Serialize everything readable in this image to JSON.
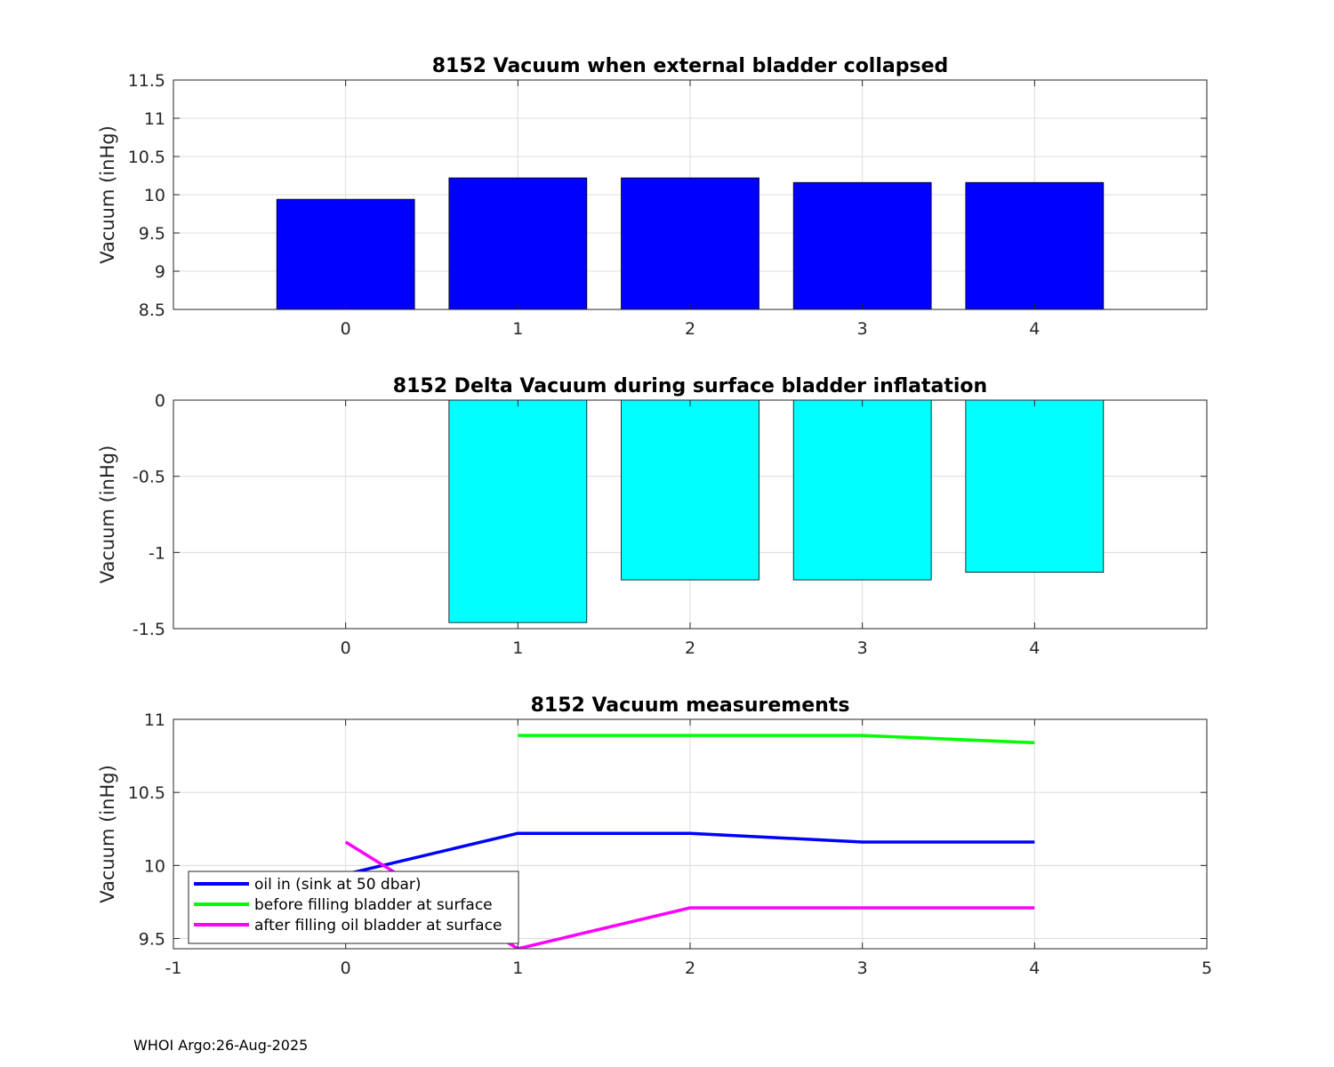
{
  "footer": "WHOI Argo:26-Aug-2025",
  "chart_data": [
    {
      "type": "bar",
      "title": "8152 Vacuum when external bladder collapsed",
      "ylabel": "Vacuum (inHg)",
      "xlabel": "",
      "categories": [
        0,
        1,
        2,
        3,
        4
      ],
      "values": [
        9.94,
        10.22,
        10.22,
        10.16,
        10.16
      ],
      "xlim": [
        -1,
        5
      ],
      "ylim": [
        8.5,
        11.5
      ],
      "yticks": [
        8.5,
        9,
        9.5,
        10,
        10.5,
        11,
        11.5
      ],
      "xticks": [
        0,
        1,
        2,
        3,
        4
      ],
      "bar_color": "#0000ff",
      "grid": true
    },
    {
      "type": "bar",
      "title": "8152 Delta Vacuum during surface bladder inflatation",
      "ylabel": "Vacuum (inHg)",
      "xlabel": "",
      "categories": [
        0,
        1,
        2,
        3,
        4
      ],
      "values": [
        0,
        -1.46,
        -1.18,
        -1.18,
        -1.13
      ],
      "xlim": [
        -1,
        5
      ],
      "ylim": [
        -1.5,
        0
      ],
      "yticks": [
        -1.5,
        -1,
        -0.5,
        0
      ],
      "xticks": [
        0,
        1,
        2,
        3,
        4
      ],
      "bar_color": "#00ffff",
      "grid": true
    },
    {
      "type": "line",
      "title": "8152 Vacuum measurements",
      "ylabel": "Vacuum (inHg)",
      "xlabel": "",
      "xlim": [
        -1,
        5
      ],
      "ylim": [
        9.43,
        11
      ],
      "yticks": [
        9.5,
        10,
        10.5,
        11
      ],
      "xticks": [
        -1,
        0,
        1,
        2,
        3,
        4,
        5
      ],
      "grid": true,
      "legend_position": "bottom-left",
      "series": [
        {
          "name": "oil in (sink at 50 dbar)",
          "color": "#0000ff",
          "x": [
            0,
            1,
            2,
            3,
            4
          ],
          "y": [
            9.94,
            10.22,
            10.22,
            10.16,
            10.16
          ]
        },
        {
          "name": "before filling bladder at surface",
          "color": "#00ff00",
          "x": [
            1,
            2,
            3,
            4
          ],
          "y": [
            10.89,
            10.89,
            10.89,
            10.84
          ]
        },
        {
          "name": "after filling oil bladder at surface",
          "color": "#ff00ff",
          "x": [
            0,
            1,
            2,
            3,
            4
          ],
          "y": [
            10.16,
            9.43,
            9.71,
            9.71,
            9.71
          ]
        }
      ]
    }
  ]
}
